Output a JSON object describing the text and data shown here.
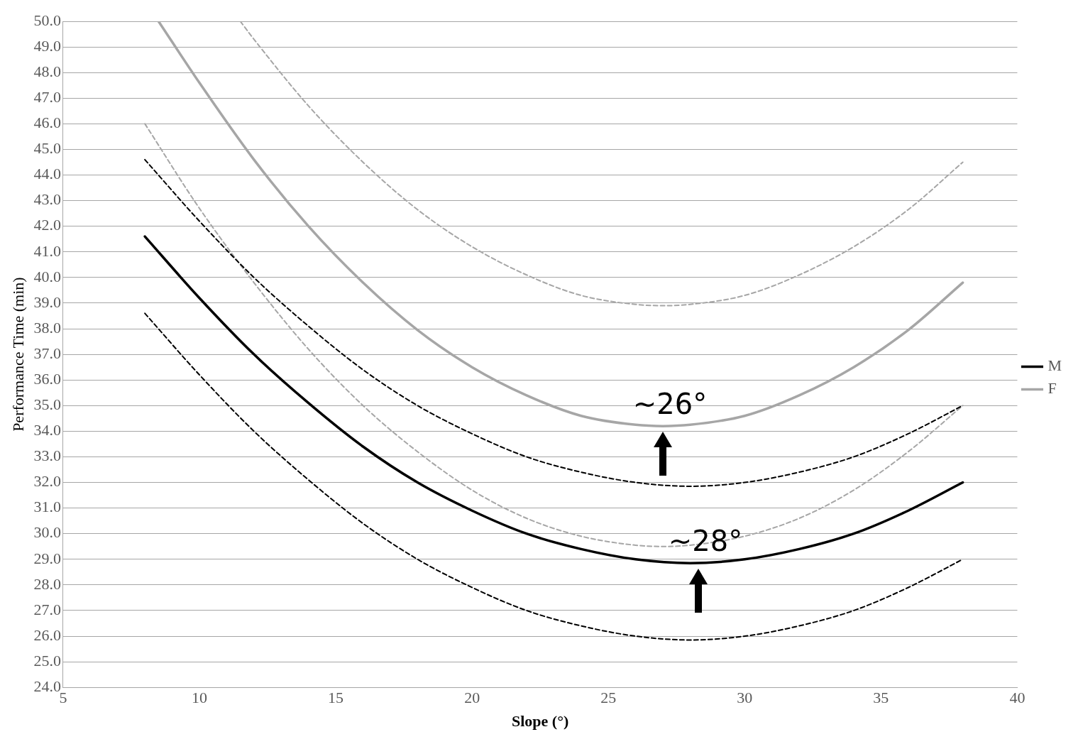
{
  "chart_data": {
    "type": "line",
    "xlabel": "Slope (°)",
    "ylabel": "Performance Time (min)",
    "xlim": [
      5,
      40
    ],
    "xticks": [
      5,
      10,
      15,
      20,
      25,
      30,
      35,
      40
    ],
    "ylim": [
      24,
      50
    ],
    "yticks": [
      {
        "value": 24,
        "label": "24.0"
      },
      {
        "value": 25,
        "label": "25.0"
      },
      {
        "value": 26,
        "label": "26.0"
      },
      {
        "value": 27,
        "label": "27.0"
      },
      {
        "value": 28,
        "label": "28.0"
      },
      {
        "value": 29,
        "label": "29.0"
      },
      {
        "value": 30,
        "label": "30.0"
      },
      {
        "value": 31,
        "label": "31.0"
      },
      {
        "value": 32,
        "label": "32.0"
      },
      {
        "value": 33,
        "label": "33.0"
      },
      {
        "value": 34,
        "label": "34.0"
      },
      {
        "value": 35,
        "label": "35.0"
      },
      {
        "value": 36,
        "label": "36.0"
      },
      {
        "value": 37,
        "label": "37.0"
      },
      {
        "value": 38,
        "label": "38.0"
      },
      {
        "value": 39,
        "label": "39.0"
      },
      {
        "value": 40,
        "label": "40.0"
      },
      {
        "value": 41,
        "label": "41.0"
      },
      {
        "value": 42,
        "label": "42.0"
      },
      {
        "value": 43,
        "label": "43.0"
      },
      {
        "value": 44,
        "label": "44.0"
      },
      {
        "value": 45,
        "label": "45.0"
      },
      {
        "value": 46,
        "label": "46.0"
      },
      {
        "value": 47,
        "label": "47.0"
      },
      {
        "value": 48,
        "label": "48.0"
      },
      {
        "value": 49,
        "label": "49.0"
      },
      {
        "value": 50,
        "label": "50.0"
      }
    ],
    "grid": "y",
    "legend": "right",
    "marker": "none",
    "series": [
      {
        "name": "M",
        "color": "#000000",
        "line_style": "solid",
        "x": [
          8,
          10,
          12,
          14,
          16,
          18,
          20,
          22,
          24,
          26,
          28,
          30,
          32,
          34,
          36,
          38
        ],
        "values": [
          41.6,
          39.2,
          37.0,
          35.1,
          33.4,
          32.0,
          30.9,
          30.0,
          29.4,
          29.0,
          28.85,
          29.0,
          29.4,
          30.0,
          30.9,
          32.0
        ]
      },
      {
        "name": "F",
        "color": "#a6a6a6",
        "line_style": "solid",
        "x": [
          8.5,
          10,
          12,
          14,
          16,
          18,
          20,
          22,
          24,
          26,
          27,
          28,
          30,
          32,
          34,
          36,
          38
        ],
        "values": [
          50.0,
          47.6,
          44.6,
          42.0,
          39.8,
          37.95,
          36.5,
          35.4,
          34.6,
          34.25,
          34.2,
          34.25,
          34.6,
          35.4,
          36.5,
          37.95,
          39.8
        ]
      },
      {
        "color": "#000000",
        "line_style": "dashed",
        "x": [
          8,
          10,
          12,
          14,
          16,
          18,
          20,
          22,
          24,
          26,
          28,
          30,
          32,
          34,
          36,
          38
        ],
        "values": [
          44.6,
          42.2,
          40.0,
          38.1,
          36.4,
          35.0,
          33.9,
          33.0,
          32.4,
          32.0,
          31.85,
          32.0,
          32.4,
          33.0,
          33.9,
          35.0
        ]
      },
      {
        "color": "#000000",
        "line_style": "dashed",
        "x": [
          8,
          10,
          12,
          14,
          16,
          18,
          20,
          22,
          24,
          26,
          28,
          30,
          32,
          34,
          36,
          38
        ],
        "values": [
          38.6,
          36.2,
          34.0,
          32.1,
          30.4,
          29.0,
          27.9,
          27.0,
          26.4,
          26.0,
          25.85,
          26.0,
          26.4,
          27.0,
          27.9,
          29.0
        ]
      },
      {
        "color": "#a6a6a6",
        "line_style": "dashed",
        "x": [
          11.5,
          12,
          14,
          16,
          18,
          20,
          22,
          24,
          26,
          27,
          28,
          30,
          32,
          34,
          36,
          38
        ],
        "values": [
          50.0,
          49.3,
          46.7,
          44.5,
          42.65,
          41.2,
          40.1,
          39.3,
          38.95,
          38.9,
          38.95,
          39.3,
          40.1,
          41.2,
          42.65,
          44.5
        ]
      },
      {
        "color": "#a6a6a6",
        "line_style": "dashed",
        "x": [
          8,
          10,
          12,
          14,
          16,
          18,
          20,
          22,
          24,
          26,
          27,
          28,
          30,
          32,
          34,
          36,
          38
        ],
        "values": [
          46.0,
          42.7,
          39.8,
          37.2,
          35.0,
          33.2,
          31.7,
          30.6,
          29.9,
          29.55,
          29.5,
          29.55,
          29.9,
          30.6,
          31.7,
          33.2,
          35.0
        ]
      }
    ],
    "annotations": [
      {
        "text": "~26°",
        "x": 27,
        "y": 34.2
      },
      {
        "text": "~28°",
        "x": 28.3,
        "y": 28.85
      }
    ]
  }
}
